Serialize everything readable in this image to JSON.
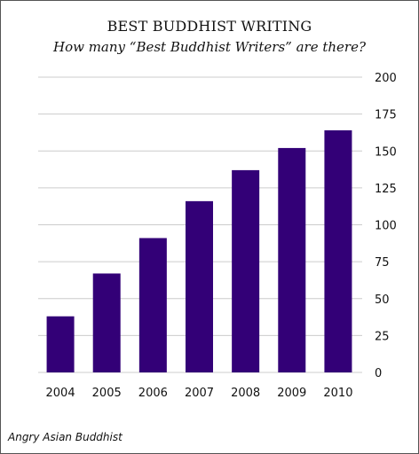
{
  "chart_data": {
    "type": "bar",
    "title": "BEST BUDDHIST WRITING",
    "subtitle": "How many “Best Buddhist Writers” are there?",
    "categories": [
      "2004",
      "2005",
      "2006",
      "2007",
      "2008",
      "2009",
      "2010"
    ],
    "values": [
      38,
      67,
      91,
      116,
      137,
      152,
      164
    ],
    "xlabel": "",
    "ylabel": "",
    "ylim": [
      0,
      200
    ],
    "yticks": [
      0,
      25,
      50,
      75,
      100,
      125,
      150,
      175,
      200
    ],
    "y_axis_side": "right",
    "grid": true,
    "legend": "none",
    "bar_color": "#330077",
    "grid_color": "#cccccc"
  },
  "source": "Angry Asian Buddhist"
}
